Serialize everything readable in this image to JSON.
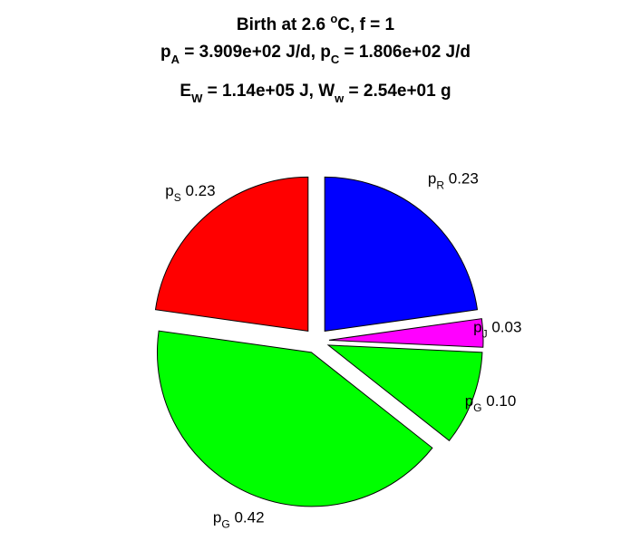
{
  "chart_data": {
    "type": "pie",
    "title": {
      "line1": {
        "pre": "Birth at 2.6 ",
        "sup": "o",
        "post": "C, f = 1"
      },
      "line2": {
        "a_base": "p",
        "a_sub": "A",
        "a_rest": " = 3.909e+02 J/d, ",
        "c_base": "p",
        "c_sub": "C",
        "c_rest": " = 1.806e+02 J/d"
      },
      "line3": {
        "e_base": "E",
        "e_sub": "W",
        "e_rest": " = 1.14e+05 J, ",
        "w_base": "W",
        "w_sub": "w",
        "w_rest": " = 2.54e+01 g"
      }
    },
    "slices": [
      {
        "base": "p",
        "sub": "R",
        "value": 0.23,
        "value_label": "0.23",
        "color": "#0000ff"
      },
      {
        "base": "p",
        "sub": "J",
        "value": 0.03,
        "value_label": "0.03",
        "color": "#ff00ff"
      },
      {
        "base": "p",
        "sub": "G",
        "value": 0.1,
        "value_label": "0.10",
        "color": "#00ff00"
      },
      {
        "base": "p",
        "sub": "G",
        "value": 0.42,
        "value_label": "0.42",
        "color": "#00ff00"
      },
      {
        "base": "p",
        "sub": "S",
        "value": 0.23,
        "value_label": "0.23",
        "color": "#ff0000"
      }
    ]
  }
}
